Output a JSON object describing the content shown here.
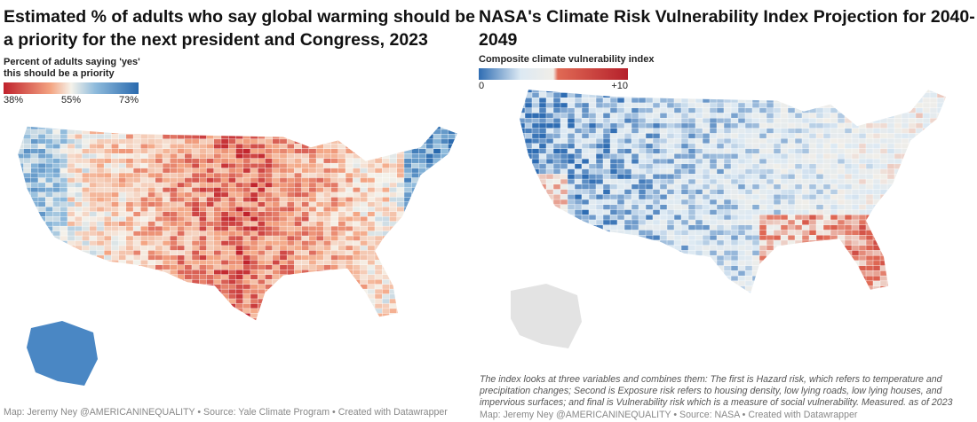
{
  "left": {
    "title": "Estimated % of adults who say global warming should be a priority for the next president and Congress, 2023",
    "legend": {
      "label_line1": "Percent of adults saying 'yes'",
      "label_line2": "this should be a priority",
      "ticks": [
        "38%",
        "55%",
        "73%"
      ],
      "colors": [
        "#c0222c",
        "#f4a583",
        "#f5f2ea",
        "#8fbbdc",
        "#2a6aae"
      ]
    },
    "footer": "Map: Jeremy Ney @AMERICANINEQUALITY • Source: Yale Climate Program • Created with Datawrapper"
  },
  "right": {
    "title": "NASA's Climate Risk Vulnerability Index Projection for 2040-2049",
    "legend": {
      "label": "Composite climate vulnerability index",
      "ticks": [
        "0",
        "+10"
      ],
      "colors": [
        "#2f6db3",
        "#dce9f3",
        "#f1eee8",
        "#e06a55",
        "#b5202b"
      ]
    },
    "note": "The index looks at three variables and combines them: The first is Hazard risk, which refers to temperature and precipitation changes; Second is Exposure risk refers to housing density, low lying roads, low lying houses, and impervious surfaces; and final is Vulnerability risk which is a measure of social vulnerability. Measured. as of 2023",
    "footer": "Map: Jeremy Ney @AMERICANINEQUALITY • Source: NASA • Created with Datawrapper"
  }
}
